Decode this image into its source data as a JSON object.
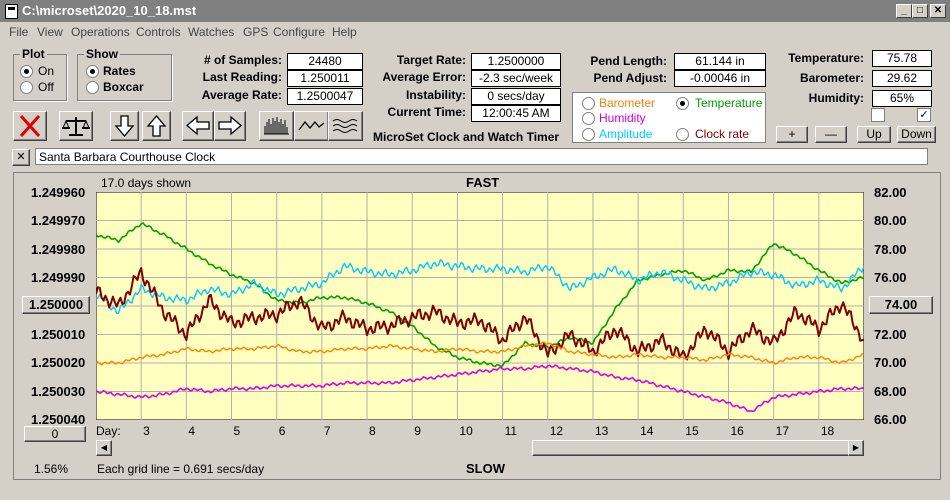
{
  "window": {
    "title": "C:\\microset\\2020_10_18.mst"
  },
  "menu": [
    "File",
    "View",
    "Operations",
    "Controls",
    "Watches",
    "GPS",
    "Configure",
    "Help"
  ],
  "plot_group": {
    "title": "Plot",
    "on": "On",
    "off": "Off",
    "selected": "On"
  },
  "show_group": {
    "title": "Show",
    "rates": "Rates",
    "boxcar": "Boxcar",
    "selected": "Rates"
  },
  "stats": {
    "samples_label": "# of Samples:",
    "samples": "24480",
    "last_label": "Last Reading:",
    "last": "1.250011",
    "avg_label": "Average Rate:",
    "avg": "1.2500047",
    "target_label": "Target Rate:",
    "target": "1.2500000",
    "avgerr_label": "Average Error:",
    "avgerr": "-2.3 sec/week",
    "instab_label": "Instability:",
    "instab": "0 secs/day",
    "time_label": "Current Time:",
    "time": "12:00:45 AM",
    "pendlen_label": "Pend Length:",
    "pendlen": "61.144 in",
    "pendadj_label": "Pend Adjust:",
    "pendadj": "-0.00046 in",
    "temp_label": "Temperature:",
    "temp": "75.78",
    "baro_label": "Barometer:",
    "baro": "29.62",
    "hum_label": "Humidity:",
    "hum": "65%"
  },
  "app_subtitle": "MicroSet Clock and Watch Timer",
  "sensor_select": {
    "barometer": "Barometer",
    "temperature": "Temperature",
    "humidity": "Humidity",
    "amplitude": "Amplitude",
    "clock_rate": "Clock rate",
    "selected": "Temperature",
    "colors": {
      "barometer": "#ff8000",
      "temperature": "#00a000",
      "humidity": "#d000d0",
      "amplitude": "#00c8ff",
      "clock_rate": "#800000"
    }
  },
  "scale_buttons": {
    "plus": "+",
    "minus": "—",
    "up": "Up",
    "down": "Down"
  },
  "watch_name": "Santa Barbara Courthouse Clock",
  "watch_close": "✕",
  "chart_data": {
    "type": "line",
    "days_shown": "17.0 days shown",
    "top_label": "FAST",
    "bottom_label": "SLOW",
    "grid_note": "Each grid line = 0.691 secs/day",
    "percent": "1.56%",
    "left_reset": "0",
    "left_current": "1.250000",
    "right_current": "74.00",
    "day_label": "Day:",
    "left_ticks": [
      "1.249960",
      "1.249970",
      "1.249980",
      "1.249990",
      "1.250000",
      "1.250010",
      "1.250020",
      "1.250030",
      "1.250040"
    ],
    "right_ticks": [
      "82.00",
      "80.00",
      "78.00",
      "76.00",
      "74.00",
      "72.00",
      "70.00",
      "68.00",
      "66.00"
    ],
    "left_range": [
      1.24996,
      1.25004
    ],
    "right_range": [
      66,
      82
    ],
    "x_range": [
      2,
      19
    ],
    "days": [
      "3",
      "4",
      "5",
      "6",
      "7",
      "8",
      "9",
      "10",
      "11",
      "12",
      "13",
      "14",
      "15",
      "16",
      "17",
      "18"
    ],
    "series": [
      {
        "name": "Temperature",
        "color": "#00a000",
        "axis": "right",
        "width": 1.6,
        "x": [
          2,
          2.5,
          3,
          3.5,
          4,
          4.5,
          5,
          5.5,
          6,
          6.5,
          7,
          7.5,
          8,
          8.5,
          9,
          9.5,
          10,
          10.5,
          11,
          11.5,
          12,
          12.5,
          13,
          13.5,
          14,
          14.5,
          15,
          15.5,
          16,
          16.5,
          17,
          17.5,
          18,
          18.5,
          19
        ],
        "y": [
          79,
          78.6,
          79.8,
          79,
          78,
          77,
          76.2,
          75.6,
          74.4,
          74.2,
          74.6,
          74.6,
          74.2,
          73.6,
          72.6,
          71.2,
          70.4,
          70,
          69.8,
          71.4,
          71.1,
          71.8,
          71.4,
          73.8,
          75.8,
          76.2,
          76.5,
          75.8,
          76.5,
          76.4,
          78.4,
          77.6,
          76.5,
          75.6,
          76
        ]
      },
      {
        "name": "Amplitude",
        "color": "#00c8ff",
        "axis": "right",
        "width": 1.4,
        "x": [
          2,
          2.5,
          3,
          3.5,
          4,
          4.5,
          5,
          5.5,
          6,
          6.5,
          7,
          7.5,
          8,
          8.5,
          9,
          9.5,
          10,
          10.5,
          11,
          11.5,
          12,
          12.5,
          13,
          13.5,
          14,
          14.5,
          15,
          15.5,
          16,
          16.5,
          17,
          17.5,
          18,
          18.5,
          19
        ],
        "y": [
          74.8,
          73.6,
          75.2,
          74.6,
          74.4,
          75.2,
          74.8,
          75.6,
          74.8,
          75.2,
          75.6,
          76.8,
          76.4,
          76.2,
          76.5,
          77,
          76.8,
          76.6,
          76.6,
          76.4,
          76.8,
          75.2,
          76,
          76.6,
          75.8,
          76.4,
          75.8,
          75.2,
          75.6,
          76.4,
          76.2,
          75.4,
          75.8,
          75.2,
          76.8
        ]
      },
      {
        "name": "Clock rate",
        "color": "#800000",
        "axis": "left",
        "width": 2,
        "x": [
          2,
          2.5,
          3,
          3.5,
          4,
          4.5,
          5,
          5.5,
          6,
          6.5,
          7,
          7.5,
          8,
          8.5,
          9,
          9.5,
          10,
          10.5,
          11,
          11.5,
          12,
          12.5,
          13,
          13.5,
          14,
          14.5,
          15,
          15.5,
          16,
          16.5,
          17,
          17.5,
          18,
          18.5,
          19
        ],
        "y": [
          1.249995,
          1.25,
          1.249988,
          1.250002,
          1.25001,
          1.249998,
          1.250006,
          1.250004,
          1.250003,
          1.249998,
          1.250008,
          1.250004,
          1.250008,
          1.250007,
          1.250004,
          1.250002,
          1.250006,
          1.250005,
          1.250012,
          1.250004,
          1.250017,
          1.25001,
          1.250016,
          1.250008,
          1.250016,
          1.250012,
          1.250018,
          1.250008,
          1.250016,
          1.250008,
          1.250013,
          1.250002,
          1.250008,
          1.249999,
          1.250012
        ]
      },
      {
        "name": "Barometer",
        "color": "#ff8000",
        "axis": "left",
        "width": 1.4,
        "x": [
          2,
          2.5,
          3,
          3.5,
          4,
          4.5,
          5,
          5.5,
          6,
          6.5,
          7,
          7.5,
          8,
          8.5,
          9,
          9.5,
          10,
          10.5,
          11,
          11.5,
          12,
          12.5,
          13,
          13.5,
          14,
          14.5,
          15,
          15.5,
          16,
          16.5,
          17,
          17.5,
          18,
          18.5,
          19
        ],
        "y": [
          1.25002,
          1.25002,
          1.250018,
          1.250017,
          1.250015,
          1.250016,
          1.250015,
          1.250015,
          1.250014,
          1.250016,
          1.250016,
          1.250015,
          1.250015,
          1.250014,
          1.250015,
          1.250016,
          1.250015,
          1.250016,
          1.250016,
          1.250014,
          1.250013,
          1.250016,
          1.250017,
          1.250018,
          1.250017,
          1.250018,
          1.250018,
          1.250019,
          1.250017,
          1.250018,
          1.25002,
          1.250018,
          1.250018,
          1.25002,
          1.250017
        ]
      },
      {
        "name": "Humidity",
        "color": "#e000e0",
        "axis": "left",
        "width": 1.6,
        "x": [
          2,
          2.5,
          3,
          3.5,
          4,
          4.5,
          5,
          5.5,
          6,
          6.5,
          7,
          7.5,
          8,
          8.5,
          9,
          9.5,
          10,
          10.5,
          11,
          11.5,
          12,
          12.5,
          13,
          13.5,
          14,
          14.5,
          15,
          15.5,
          16,
          16.5,
          17,
          17.5,
          18,
          18.5,
          19
        ],
        "y": [
          1.25003,
          1.250031,
          1.250032,
          1.250031,
          1.250029,
          1.25003,
          1.250029,
          1.250029,
          1.250028,
          1.250028,
          1.250028,
          1.250027,
          1.250027,
          1.250027,
          1.250026,
          1.250025,
          1.250024,
          1.250023,
          1.250022,
          1.250022,
          1.250021,
          1.250022,
          1.250023,
          1.250025,
          1.250026,
          1.250028,
          1.25003,
          1.250032,
          1.250034,
          1.250037,
          1.250032,
          1.250031,
          1.25003,
          1.250029,
          1.250029
        ]
      }
    ]
  }
}
